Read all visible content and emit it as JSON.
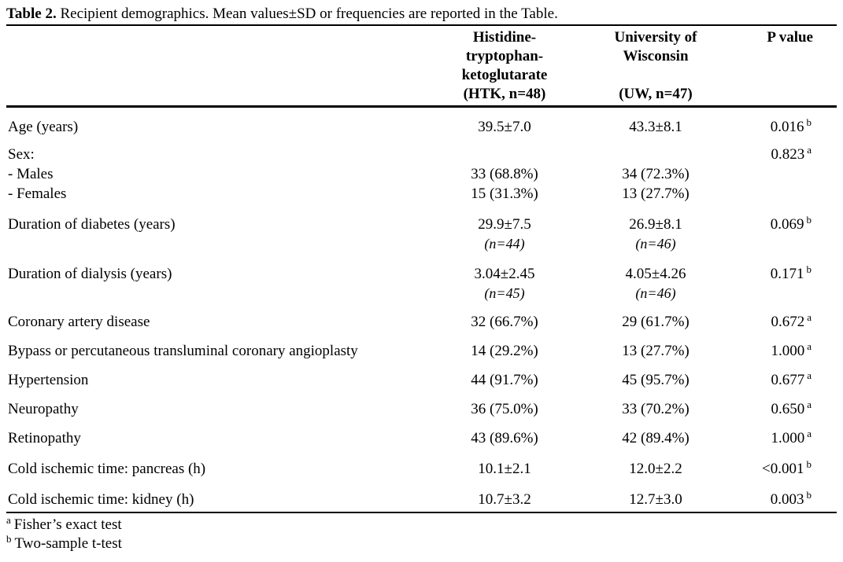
{
  "colors": {
    "text": "#000000",
    "background": "#ffffff"
  },
  "caption": {
    "label": "Table 2.",
    "text": "Recipient demographics. Mean values±SD or frequencies are reported in the Table."
  },
  "columns": {
    "htk": {
      "line1": "Histidine-",
      "line2": "tryptophan-",
      "line3": "ketoglutarate",
      "line4": "(HTK, n=48)"
    },
    "uw": {
      "line1": "University of",
      "line2": "Wisconsin",
      "line4": "(UW, n=47)"
    },
    "p": {
      "line1": "P value"
    }
  },
  "rows": [
    {
      "label": "Age (years)",
      "htk": "39.5±7.0",
      "uw": "43.3±8.1",
      "p": "0.016",
      "p_sup": "b"
    },
    {
      "label": "Sex:",
      "htk": "",
      "uw": "",
      "p": "0.823",
      "p_sup": "a"
    },
    {
      "label": "- Males",
      "htk": "33 (68.8%)",
      "uw": "34 (72.3%)"
    },
    {
      "label": "- Females",
      "htk": "15 (31.3%)",
      "uw": "13 (27.7%)"
    },
    {
      "label": "Duration of diabetes (years)",
      "htk": "29.9±7.5",
      "htk_n": "(n=44)",
      "uw": "26.9±8.1",
      "uw_n": "(n=46)",
      "p": "0.069",
      "p_sup": "b"
    },
    {
      "label": "Duration of dialysis (years)",
      "htk": "3.04±2.45",
      "htk_n": "(n=45)",
      "uw": "4.05±4.26",
      "uw_n": "(n=46)",
      "p": "0.171",
      "p_sup": "b"
    },
    {
      "label": "Coronary artery disease",
      "htk": "32 (66.7%)",
      "uw": "29 (61.7%)",
      "p": "0.672",
      "p_sup": "a"
    },
    {
      "label": "Bypass or percutaneous transluminal coronary angioplasty",
      "htk": "14 (29.2%)",
      "uw": "13 (27.7%)",
      "p": "1.000",
      "p_sup": "a"
    },
    {
      "label": "Hypertension",
      "htk": "44 (91.7%)",
      "uw": "45 (95.7%)",
      "p": "0.677",
      "p_sup": "a"
    },
    {
      "label": "Neuropathy",
      "htk": "36 (75.0%)",
      "uw": "33 (70.2%)",
      "p": "0.650",
      "p_sup": "a"
    },
    {
      "label": "Retinopathy",
      "htk": "43 (89.6%)",
      "uw": "42 (89.4%)",
      "p": "1.000",
      "p_sup": "a"
    },
    {
      "label": "Cold ischemic time: pancreas (h)",
      "htk": "10.1±2.1",
      "uw": "12.0±2.2",
      "p": "<0.001",
      "p_sup": "b"
    },
    {
      "label": "Cold ischemic time: kidney (h)",
      "htk": "10.7±3.2",
      "uw": "12.7±3.0",
      "p": "0.003",
      "p_sup": "b"
    }
  ],
  "footnotes": [
    {
      "marker": "a",
      "text": "Fisher’s exact test"
    },
    {
      "marker": "b",
      "text": "Two-sample t-test"
    }
  ]
}
